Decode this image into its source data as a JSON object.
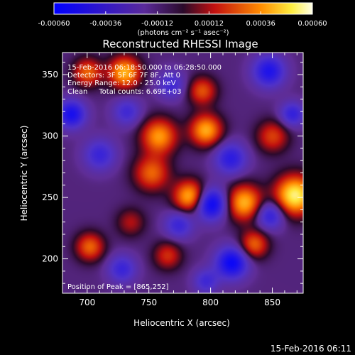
{
  "chart_data": {
    "type": "heatmap",
    "title": "Reconstructed RHESSI Image",
    "xlabel": "Heliocentric X (arcsec)",
    "ylabel": "Heliocentric Y (arcsec)",
    "xlim": [
      680,
      875
    ],
    "ylim": [
      172,
      368
    ],
    "x_ticks": [
      700,
      750,
      800,
      850
    ],
    "y_ticks": [
      200,
      250,
      300,
      350
    ],
    "colorbar": {
      "range": [
        -0.0006,
        0.0006
      ],
      "ticks": [
        "-0.00060",
        "-0.00036",
        "-0.00012",
        "0.00012",
        "0.00036",
        "0.00060"
      ],
      "units_label": "(photons cm⁻² s⁻¹ asec⁻²)"
    },
    "annotations": [
      "15-Feb-2016 06:18:50.000 to 06:28:50.000",
      "Detectors: 3F 5F 6F 7F 8F, Att 0",
      "Energy Range: 12.0 - 25.0 keV",
      "Clean     Total counts: 6.69E+03"
    ],
    "peak_label": "Position of Peak = [865,252]",
    "footer_timestamp": "15-Feb-2016 06:11",
    "sources": [
      {
        "x": 868,
        "y": 252,
        "s": 11,
        "a": 1.0
      },
      {
        "x": 827,
        "y": 246,
        "s": 10,
        "a": 0.78
      },
      {
        "x": 783,
        "y": 251,
        "s": 9,
        "a": 0.8
      },
      {
        "x": 730,
        "y": 352,
        "s": 9,
        "a": 0.78
      },
      {
        "x": 758,
        "y": 300,
        "s": 10,
        "a": 0.7
      },
      {
        "x": 752,
        "y": 270,
        "s": 10,
        "a": 0.55
      },
      {
        "x": 796,
        "y": 305,
        "s": 9,
        "a": 0.75
      },
      {
        "x": 793,
        "y": 337,
        "s": 8,
        "a": 0.5
      },
      {
        "x": 835,
        "y": 212,
        "s": 8,
        "a": 0.55
      },
      {
        "x": 702,
        "y": 210,
        "s": 8,
        "a": 0.55
      },
      {
        "x": 700,
        "y": 352,
        "s": 8,
        "a": 0.55
      },
      {
        "x": 765,
        "y": 203,
        "s": 8,
        "a": 0.4
      },
      {
        "x": 850,
        "y": 300,
        "s": 9,
        "a": 0.45
      },
      {
        "x": 735,
        "y": 230,
        "s": 8,
        "a": 0.3
      },
      {
        "x": 800,
        "y": 245,
        "s": 9,
        "a": -0.85
      },
      {
        "x": 817,
        "y": 197,
        "s": 9,
        "a": -0.8
      },
      {
        "x": 687,
        "y": 318,
        "s": 8,
        "a": -0.7
      },
      {
        "x": 847,
        "y": 353,
        "s": 9,
        "a": -0.65
      },
      {
        "x": 848,
        "y": 236,
        "s": 8,
        "a": -0.55
      },
      {
        "x": 816,
        "y": 282,
        "s": 9,
        "a": -0.55
      },
      {
        "x": 866,
        "y": 318,
        "s": 7,
        "a": -0.5
      },
      {
        "x": 710,
        "y": 285,
        "s": 9,
        "a": -0.45
      },
      {
        "x": 732,
        "y": 320,
        "s": 8,
        "a": -0.4
      },
      {
        "x": 768,
        "y": 342,
        "s": 8,
        "a": -0.4
      },
      {
        "x": 774,
        "y": 228,
        "s": 8,
        "a": -0.45
      },
      {
        "x": 728,
        "y": 192,
        "s": 8,
        "a": -0.45
      },
      {
        "x": 796,
        "y": 182,
        "s": 7,
        "a": -0.4
      }
    ]
  }
}
